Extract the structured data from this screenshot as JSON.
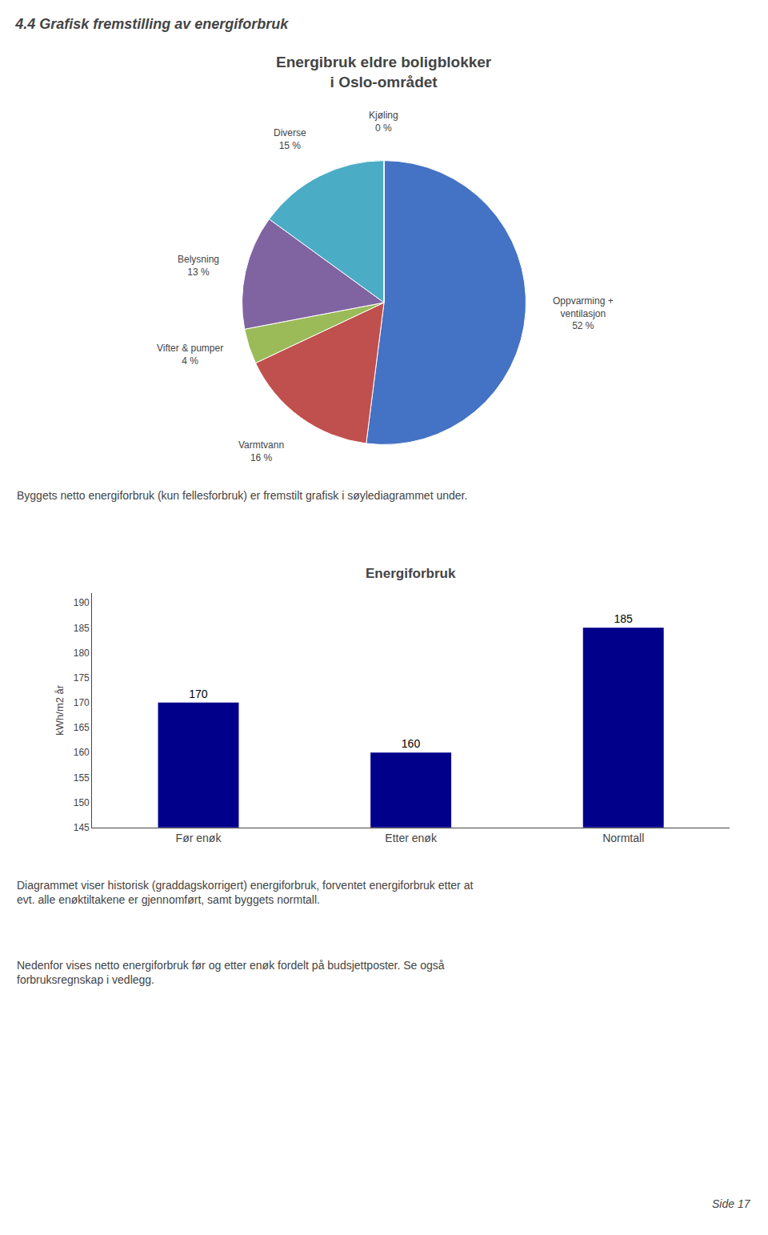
{
  "title": "4.4 Grafisk fremstilling av energiforbruk",
  "annotations": [
    "Byggets netto energiforbruk (kun fellesforbruk) er fremstilt grafisk i søylediagrammet under.",
    "Diagrammet viser historisk (graddagskorrigert) energiforbruk, forventet energiforbruk etter at\nevt. alle enøktiltakene er gjennomført, samt byggets normtall.",
    "Nedenfor vises netto energiforbruk før og etter enøk fordelt på budsjettposter. Se også\nforbruksregnskap i vedlegg.",
    "Side 17"
  ],
  "chart_data": [
    {
      "type": "pie",
      "title": "Energibruk eldre boligblokker\ni Oslo-området",
      "categories": [
        "Oppvarming +\nventilasjon",
        "Varmtvann",
        "Vifter & pumper",
        "Belysning",
        "Diverse",
        "Kjøling"
      ],
      "values": [
        52,
        16,
        4,
        13,
        15,
        0
      ],
      "value_labels": [
        "52 %",
        "16 %",
        "4 %",
        "13 %",
        "15 %",
        "0 %"
      ],
      "data_labels": true,
      "colors": [
        "#4472C4",
        "#C0504D",
        "#9BBB59",
        "#8064A2",
        "#4BACC6",
        "#4BACC6"
      ]
    },
    {
      "type": "bar",
      "title": "Energiforbruk",
      "categories": [
        "Før enøk",
        "Etter enøk",
        "Normtall"
      ],
      "values": [
        170,
        160,
        185
      ],
      "color": "#00008B",
      "ylabel": "kWh/m2 år",
      "ylim": [
        145,
        192
      ],
      "yticks": [
        145,
        150,
        155,
        160,
        165,
        170,
        175,
        180,
        185,
        190
      ],
      "data_labels": true,
      "grid": false
    }
  ]
}
